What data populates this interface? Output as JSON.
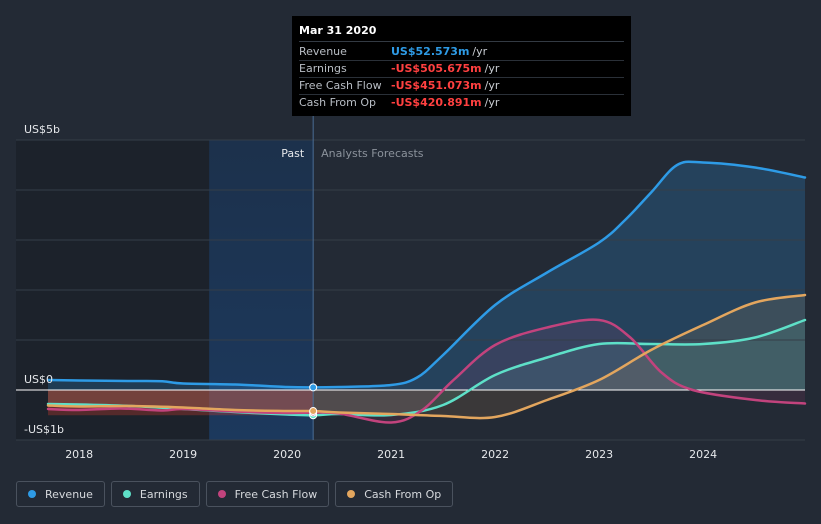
{
  "tooltip": {
    "title": "Mar 31 2020",
    "rows": [
      {
        "label": "Revenue",
        "value": "US$52.573m",
        "unit": "/yr",
        "color": "#2e9be6"
      },
      {
        "label": "Earnings",
        "value": "-US$505.675m",
        "unit": "/yr",
        "color": "#ff4040"
      },
      {
        "label": "Free Cash Flow",
        "value": "-US$451.073m",
        "unit": "/yr",
        "color": "#ff4040"
      },
      {
        "label": "Cash From Op",
        "value": "-US$420.891m",
        "unit": "/yr",
        "color": "#ff4040"
      }
    ]
  },
  "legend": [
    {
      "label": "Revenue",
      "color": "#2e9be6"
    },
    {
      "label": "Earnings",
      "color": "#5ee0c8"
    },
    {
      "label": "Free Cash Flow",
      "color": "#c2437d"
    },
    {
      "label": "Cash From Op",
      "color": "#e3a65e"
    }
  ],
  "chart_data": {
    "type": "line",
    "region_labels": {
      "past": "Past",
      "forecast": "Analysts Forecasts"
    },
    "y_tick_labels": [
      {
        "value": 5000,
        "label": "US$5b"
      },
      {
        "value": 0,
        "label": "US$0"
      },
      {
        "value": -1000,
        "label": "-US$1b"
      }
    ],
    "x_tick_labels": [
      {
        "value": 2018,
        "label": "2018"
      },
      {
        "value": 2019,
        "label": "2019"
      },
      {
        "value": 2020,
        "label": "2020"
      },
      {
        "value": 2021,
        "label": "2021"
      },
      {
        "value": 2022,
        "label": "2022"
      },
      {
        "value": 2023,
        "label": "2023"
      },
      {
        "value": 2024,
        "label": "2024"
      }
    ],
    "xlim": [
      2017.7,
      2024.98
    ],
    "ylim": [
      -1000,
      5000
    ],
    "past_end": 2020.25,
    "highlight_start": 2019.25,
    "units": "US$ millions",
    "series": [
      {
        "name": "Revenue",
        "color": "#2e9be6",
        "x": [
          2017.7,
          2018.0,
          2018.5,
          2018.8,
          2019.0,
          2019.5,
          2020.0,
          2020.25,
          2020.5,
          2021.0,
          2021.25,
          2021.5,
          2022.0,
          2022.5,
          2023.0,
          2023.25,
          2023.5,
          2023.75,
          2024.0,
          2024.5,
          2024.98
        ],
        "y": [
          200,
          190,
          180,
          175,
          130,
          110,
          60,
          52.6,
          60,
          100,
          250,
          700,
          1700,
          2350,
          2950,
          3400,
          3950,
          4500,
          4550,
          4450,
          4250
        ]
      },
      {
        "name": "Earnings",
        "color": "#5ee0c8",
        "x": [
          2017.7,
          2018.0,
          2018.5,
          2019.0,
          2019.5,
          2020.0,
          2020.25,
          2020.5,
          2021.0,
          2021.5,
          2022.0,
          2022.5,
          2023.0,
          2023.5,
          2024.0,
          2024.5,
          2024.98
        ],
        "y": [
          -280,
          -290,
          -320,
          -380,
          -440,
          -490,
          -505.7,
          -480,
          -500,
          -300,
          300,
          650,
          920,
          920,
          920,
          1050,
          1400
        ]
      },
      {
        "name": "Free Cash Flow",
        "color": "#c2437d",
        "x": [
          2017.7,
          2018.0,
          2018.4,
          2018.8,
          2019.0,
          2019.5,
          2020.0,
          2020.25,
          2020.5,
          2021.0,
          2021.3,
          2021.6,
          2022.0,
          2022.5,
          2023.0,
          2023.3,
          2023.6,
          2023.9,
          2024.5,
          2024.98
        ],
        "y": [
          -380,
          -400,
          -370,
          -410,
          -380,
          -430,
          -460,
          -451.1,
          -470,
          -650,
          -400,
          200,
          900,
          1250,
          1400,
          1050,
          350,
          0,
          -200,
          -270
        ]
      },
      {
        "name": "Cash From Op",
        "color": "#e3a65e",
        "x": [
          2017.7,
          2018.0,
          2018.5,
          2019.0,
          2019.5,
          2020.0,
          2020.25,
          2020.5,
          2021.0,
          2021.5,
          2022.0,
          2022.5,
          2023.0,
          2023.5,
          2024.0,
          2024.5,
          2024.98
        ],
        "y": [
          -310,
          -330,
          -320,
          -350,
          -400,
          -420,
          -420.9,
          -450,
          -480,
          -520,
          -540,
          -200,
          200,
          800,
          1300,
          1750,
          1900
        ]
      }
    ]
  }
}
